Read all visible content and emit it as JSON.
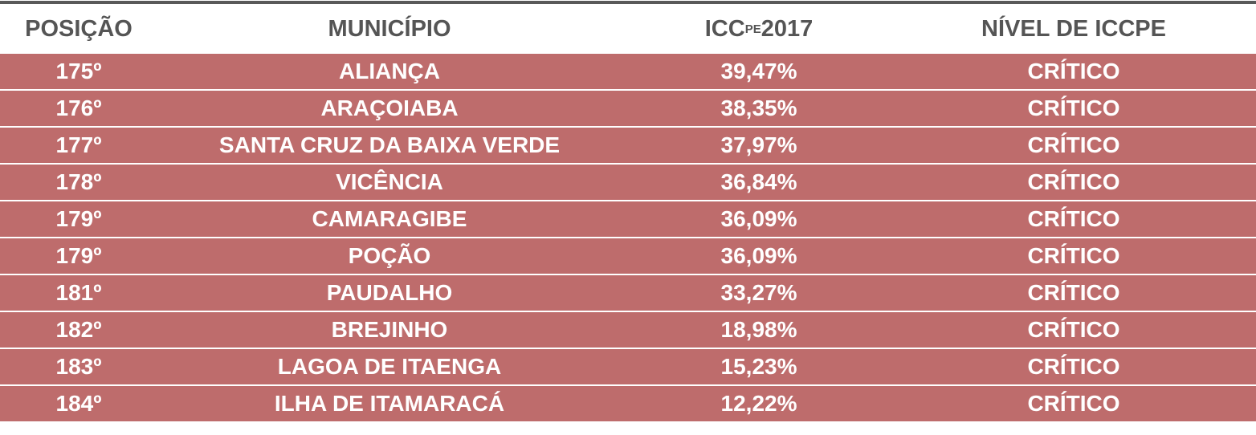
{
  "table": {
    "header": [
      "POSIÇÃO",
      "MUNICÍPIO",
      {
        "main": "ICC",
        "sub": "PE",
        "suffix": "2017"
      },
      "NÍVEL DE ICCPE"
    ],
    "rows": [
      [
        "175º",
        "ALIANÇA",
        "39,47%",
        "CRÍTICO"
      ],
      [
        "176º",
        "ARAÇOIABA",
        "38,35%",
        "CRÍTICO"
      ],
      [
        "177º",
        "SANTA CRUZ DA BAIXA VERDE",
        "37,97%",
        "CRÍTICO"
      ],
      [
        "178º",
        "VICÊNCIA",
        "36,84%",
        "CRÍTICO"
      ],
      [
        "179º",
        "CAMARAGIBE",
        "36,09%",
        "CRÍTICO"
      ],
      [
        "179º",
        "POÇÃO",
        "36,09%",
        "CRÍTICO"
      ],
      [
        "181º",
        "PAUDALHO",
        "33,27%",
        "CRÍTICO"
      ],
      [
        "182º",
        "BREJINHO",
        "18,98%",
        "CRÍTICO"
      ],
      [
        "183º",
        "LAGOA DE ITAENGA",
        "15,23%",
        "CRÍTICO"
      ],
      [
        "184º",
        "ILHA DE ITAMARACÁ",
        "12,22%",
        "CRÍTICO"
      ]
    ]
  }
}
